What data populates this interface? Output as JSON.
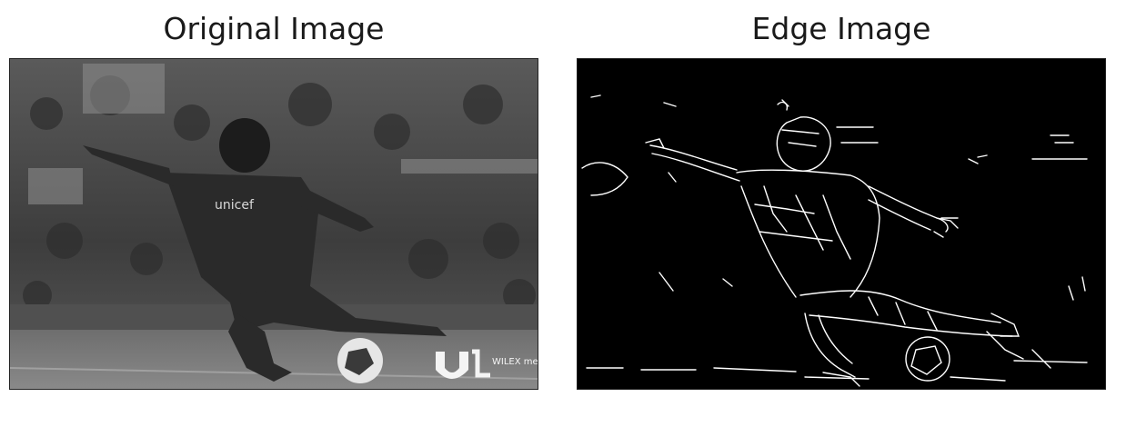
{
  "figure": {
    "left_title": "Original Image",
    "right_title": "Edge Image"
  },
  "images": {
    "original": {
      "description_icon": "grayscale-photo",
      "watermark": "WILEX media"
    },
    "edge": {
      "description_icon": "edge-detection-map"
    }
  }
}
